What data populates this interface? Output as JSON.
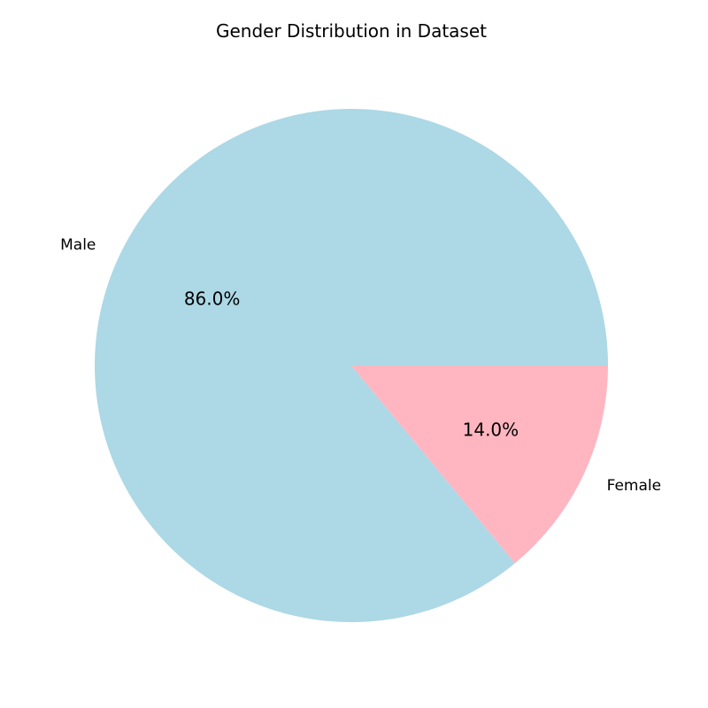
{
  "chart_data": {
    "type": "pie",
    "title": "Gender Distribution in Dataset",
    "slices": [
      {
        "label": "Male",
        "value": 86.0,
        "pct_label": "86.0%",
        "color": "#add8e6"
      },
      {
        "label": "Female",
        "value": 14.0,
        "pct_label": "14.0%",
        "color": "#ffb6c1"
      }
    ],
    "start_angle": 0,
    "direction": "counterclockwise",
    "legend": "none"
  }
}
